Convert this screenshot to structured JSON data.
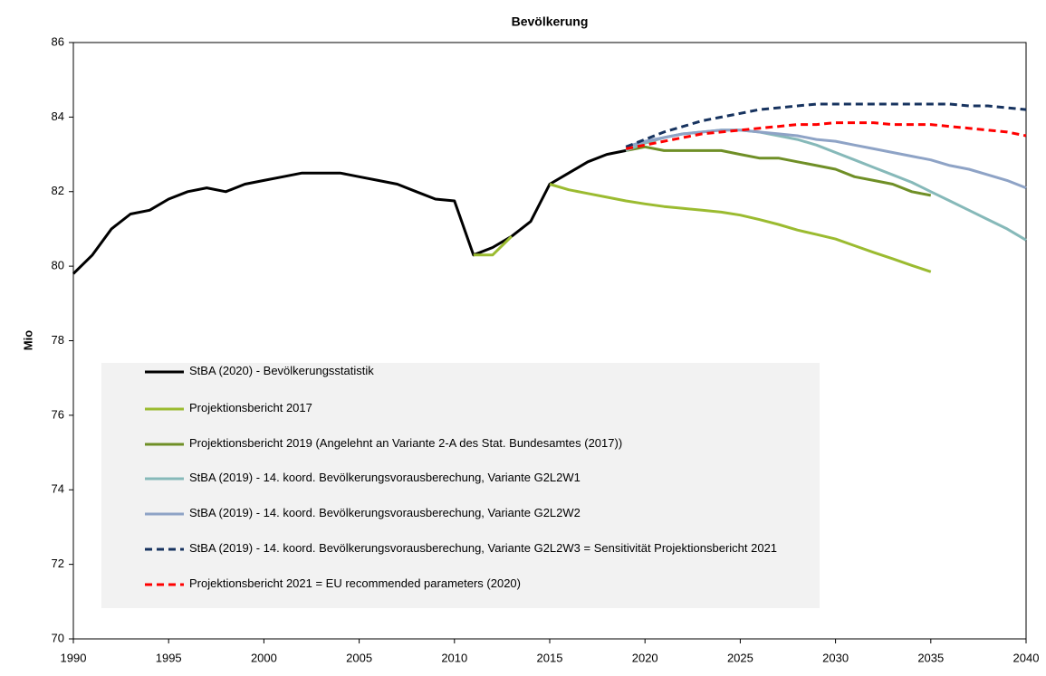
{
  "chart_data": {
    "type": "line",
    "title": "Bevölkerung",
    "y_label": "Mio",
    "x": [
      1990,
      1991,
      1992,
      1993,
      1994,
      1995,
      1996,
      1997,
      1998,
      1999,
      2000,
      2001,
      2002,
      2003,
      2004,
      2005,
      2006,
      2007,
      2008,
      2009,
      2010,
      2011,
      2012,
      2013,
      2014,
      2015,
      2016,
      2017,
      2018,
      2019,
      2020,
      2021,
      2022,
      2023,
      2024,
      2025,
      2026,
      2027,
      2028,
      2029,
      2030,
      2031,
      2032,
      2033,
      2034,
      2035,
      2036,
      2037,
      2038,
      2039,
      2040
    ],
    "xlim": [
      1990,
      2040
    ],
    "xticks": [
      1990,
      1995,
      2000,
      2005,
      2010,
      2015,
      2020,
      2025,
      2030,
      2035,
      2040
    ],
    "ylim": [
      70,
      86
    ],
    "yticks": [
      70,
      72,
      74,
      76,
      78,
      80,
      82,
      84,
      86
    ],
    "series": [
      {
        "name": "StBA (2020) - Bevölkerungsstatistik",
        "color": "#000000",
        "dash": false,
        "values": [
          79.8,
          80.3,
          81.0,
          81.4,
          81.5,
          81.8,
          82.0,
          82.1,
          82.0,
          82.2,
          82.3,
          82.4,
          82.5,
          82.5,
          82.5,
          82.4,
          82.3,
          82.2,
          82.0,
          81.8,
          81.75,
          80.3,
          80.5,
          80.8,
          81.2,
          82.2,
          82.5,
          82.8,
          83.0,
          83.1,
          null,
          null,
          null,
          null,
          null,
          null,
          null,
          null,
          null,
          null,
          null,
          null,
          null,
          null,
          null,
          null,
          null,
          null,
          null,
          null,
          null
        ]
      },
      {
        "name": "Projektionsbericht 2017",
        "color": "#9bbb30",
        "dash": false,
        "values": [
          null,
          null,
          null,
          null,
          null,
          null,
          null,
          null,
          null,
          null,
          null,
          null,
          null,
          null,
          null,
          null,
          null,
          null,
          null,
          null,
          null,
          80.3,
          80.3,
          80.8,
          null,
          82.2,
          82.05,
          81.95,
          81.85,
          81.75,
          81.67,
          81.6,
          81.55,
          81.5,
          81.45,
          81.37,
          81.25,
          81.12,
          80.97,
          80.85,
          80.73,
          80.55,
          80.37,
          80.2,
          80.02,
          79.85,
          null,
          null,
          null,
          null,
          null
        ]
      },
      {
        "name": "Projektionsbericht 2019 (Angelehnt an Variante 2-A des Stat. Bundesamtes (2017))",
        "color": "#6f8f26",
        "dash": false,
        "values": [
          null,
          null,
          null,
          null,
          null,
          null,
          null,
          null,
          null,
          null,
          null,
          null,
          null,
          null,
          null,
          null,
          null,
          null,
          null,
          null,
          null,
          null,
          null,
          null,
          null,
          null,
          null,
          null,
          null,
          83.1,
          83.2,
          83.1,
          83.1,
          83.1,
          83.1,
          83.0,
          82.9,
          82.9,
          82.8,
          82.7,
          82.6,
          82.4,
          82.3,
          82.2,
          82.0,
          81.9,
          null,
          null,
          null,
          null,
          null
        ]
      },
      {
        "name": "StBA (2019) - 14. koord. Bevölkerungsvorausberechung, Variante G2L2W1",
        "color": "#86b9b9",
        "dash": false,
        "values": [
          null,
          null,
          null,
          null,
          null,
          null,
          null,
          null,
          null,
          null,
          null,
          null,
          null,
          null,
          null,
          null,
          null,
          null,
          null,
          null,
          null,
          null,
          null,
          null,
          null,
          null,
          null,
          null,
          null,
          83.1,
          83.3,
          83.45,
          83.55,
          83.6,
          83.65,
          83.65,
          83.6,
          83.5,
          83.4,
          83.25,
          83.05,
          82.85,
          82.65,
          82.45,
          82.25,
          82.0,
          81.75,
          81.5,
          81.25,
          81.0,
          80.7
        ]
      },
      {
        "name": "StBA (2019) - 14. koord. Bevölkerungsvorausberechung, Variante G2L2W2",
        "color": "#8ea3c6",
        "dash": false,
        "values": [
          null,
          null,
          null,
          null,
          null,
          null,
          null,
          null,
          null,
          null,
          null,
          null,
          null,
          null,
          null,
          null,
          null,
          null,
          null,
          null,
          null,
          null,
          null,
          null,
          null,
          null,
          null,
          null,
          null,
          83.2,
          83.35,
          83.45,
          83.55,
          83.6,
          83.65,
          83.65,
          83.6,
          83.55,
          83.5,
          83.4,
          83.35,
          83.25,
          83.15,
          83.05,
          82.95,
          82.85,
          82.7,
          82.6,
          82.45,
          82.3,
          82.1
        ]
      },
      {
        "name": "StBA (2019) - 14. koord. Bevölkerungsvorausberechung, Variante G2L2W3 = Sensitivität Projektionsbericht 2021",
        "color": "#17335f",
        "dash": true,
        "values": [
          null,
          null,
          null,
          null,
          null,
          null,
          null,
          null,
          null,
          null,
          null,
          null,
          null,
          null,
          null,
          null,
          null,
          null,
          null,
          null,
          null,
          null,
          null,
          null,
          null,
          null,
          null,
          null,
          null,
          83.2,
          83.4,
          83.6,
          83.75,
          83.9,
          84.0,
          84.1,
          84.2,
          84.25,
          84.3,
          84.35,
          84.35,
          84.35,
          84.35,
          84.35,
          84.35,
          84.35,
          84.35,
          84.3,
          84.3,
          84.25,
          84.2
        ]
      },
      {
        "name": "Projektionsbericht 2021 = EU recommended parameters (2020)",
        "color": "#ff0000",
        "dash": true,
        "values": [
          null,
          null,
          null,
          null,
          null,
          null,
          null,
          null,
          null,
          null,
          null,
          null,
          null,
          null,
          null,
          null,
          null,
          null,
          null,
          null,
          null,
          null,
          null,
          null,
          null,
          null,
          null,
          null,
          null,
          83.15,
          83.25,
          83.35,
          83.45,
          83.55,
          83.6,
          83.65,
          83.7,
          83.75,
          83.8,
          83.8,
          83.85,
          83.85,
          83.85,
          83.8,
          83.8,
          83.8,
          83.75,
          83.7,
          83.65,
          83.6,
          83.5
        ]
      }
    ]
  }
}
